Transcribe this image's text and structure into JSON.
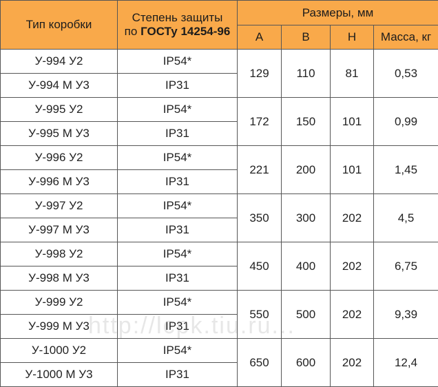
{
  "headers": {
    "box_type": "Тип коробки",
    "protection_line1": "Степень защиты",
    "protection_line2_prefix": "по ",
    "protection_line2_bold": "ГОСТу 14254-96",
    "dimensions": "Размеры, мм",
    "col_a": "A",
    "col_b": "B",
    "col_h": "H",
    "mass": "Масса, кг"
  },
  "groups": [
    {
      "rows": [
        {
          "type": "У-994 У2",
          "ip": "IP54*"
        },
        {
          "type": "У-994 М У3",
          "ip": "IP31"
        }
      ],
      "a": "129",
      "b": "110",
      "h": "81",
      "mass": "0,53"
    },
    {
      "rows": [
        {
          "type": "У-995 У2",
          "ip": "IP54*"
        },
        {
          "type": "У-995 М У3",
          "ip": "IP31"
        }
      ],
      "a": "172",
      "b": "150",
      "h": "101",
      "mass": "0,99"
    },
    {
      "rows": [
        {
          "type": "У-996 У2",
          "ip": "IP54*"
        },
        {
          "type": "У-996 М У3",
          "ip": "IP31"
        }
      ],
      "a": "221",
      "b": "200",
      "h": "101",
      "mass": "1,45"
    },
    {
      "rows": [
        {
          "type": "У-997 У2",
          "ip": "IP54*"
        },
        {
          "type": "У-997 М У3",
          "ip": "IP31"
        }
      ],
      "a": "350",
      "b": "300",
      "h": "202",
      "mass": "4,5"
    },
    {
      "rows": [
        {
          "type": "У-998 У2",
          "ip": "IP54*"
        },
        {
          "type": "У-998 М У3",
          "ip": "IP31"
        }
      ],
      "a": "450",
      "b": "400",
      "h": "202",
      "mass": "6,75"
    },
    {
      "rows": [
        {
          "type": "У-999 У2",
          "ip": "IP54*"
        },
        {
          "type": "У-999 М У3",
          "ip": "IP31"
        }
      ],
      "a": "550",
      "b": "500",
      "h": "202",
      "mass": "9,39"
    },
    {
      "rows": [
        {
          "type": "У-1000 У2",
          "ip": "IP54*"
        },
        {
          "type": "У-1000 М У3",
          "ip": "IP31"
        }
      ],
      "a": "650",
      "b": "600",
      "h": "202",
      "mass": "12,4"
    }
  ],
  "watermark": "http://lcpk.tiu.ru...",
  "colors": {
    "header_bg": "#f9a94a",
    "border": "#555555",
    "text": "#222222"
  }
}
